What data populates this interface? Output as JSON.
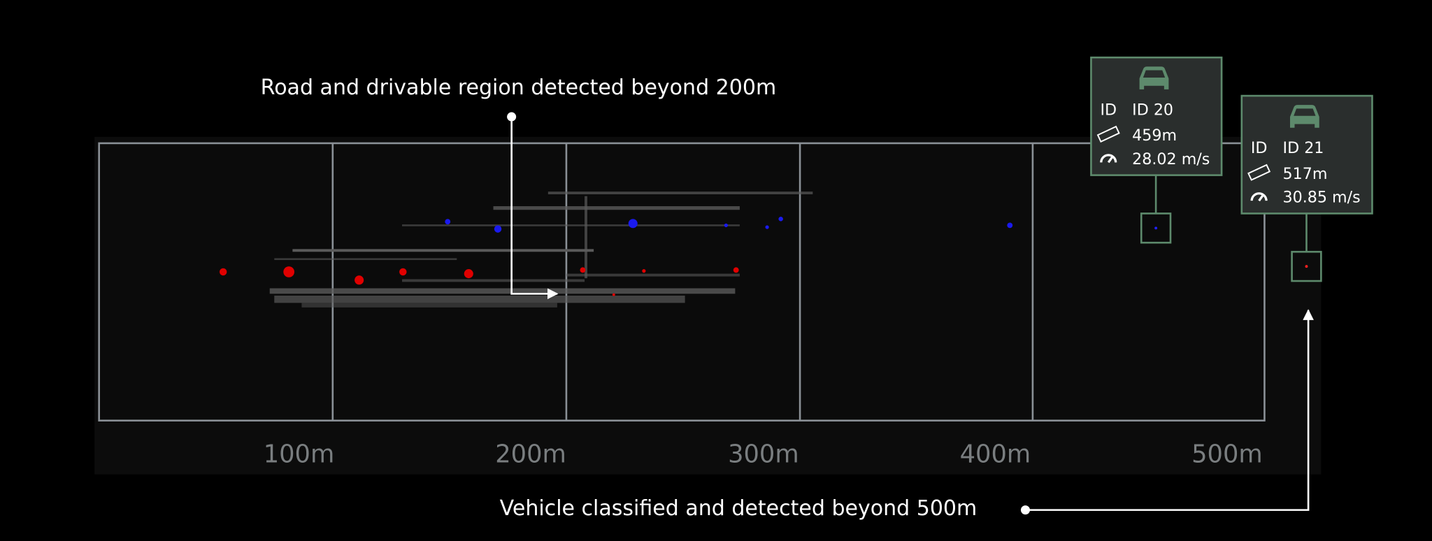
{
  "annotations": {
    "road": "Road and drivable region detected beyond 200m",
    "vehicle": "Vehicle classified and detected beyond 500m"
  },
  "distance_labels": [
    "100m",
    "200m",
    "300m",
    "400m",
    "500m"
  ],
  "cards": [
    {
      "id_label": "ID",
      "id": "ID 20",
      "distance": "459m",
      "speed": "28.02 m/s"
    },
    {
      "id_label": "ID",
      "id": "ID 21",
      "distance": "517m",
      "speed": "30.85 m/s"
    }
  ]
}
